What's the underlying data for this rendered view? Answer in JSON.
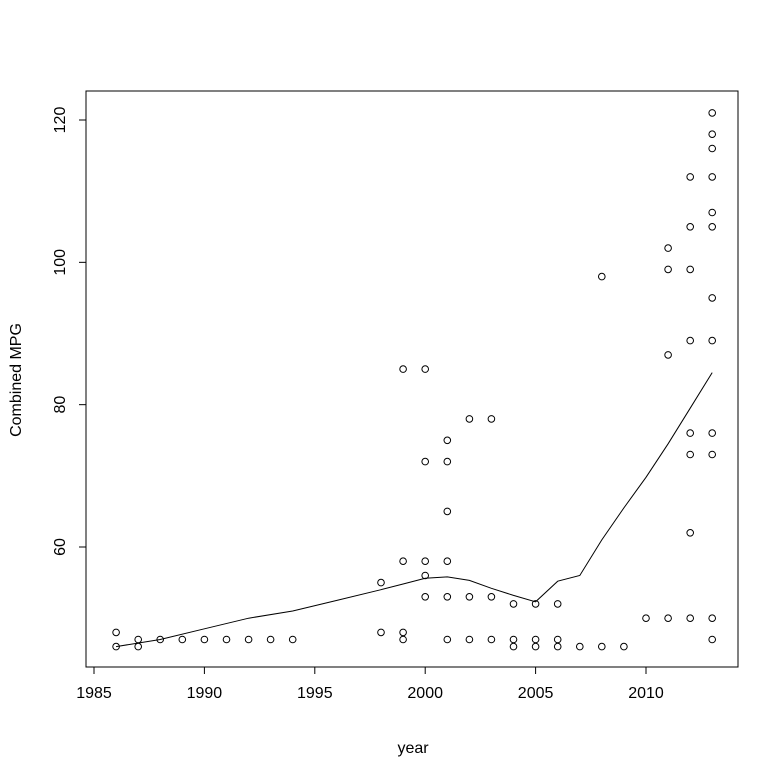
{
  "chart_data": {
    "type": "scatter",
    "title": "",
    "xlabel": "year",
    "ylabel": "Combined MPG",
    "xlim": [
      1985,
      2014
    ],
    "ylim": [
      43,
      124
    ],
    "xticks": [
      1985,
      1990,
      1995,
      2000,
      2005,
      2010
    ],
    "yticks": [
      60,
      80,
      100,
      120
    ],
    "grid": false,
    "legend": "none",
    "marker": "open-circle",
    "colors": {
      "points": "#000000",
      "line": "#000000",
      "frame": "#000000"
    },
    "points": [
      [
        1986,
        48
      ],
      [
        1986,
        46
      ],
      [
        1987,
        47
      ],
      [
        1987,
        46
      ],
      [
        1988,
        47
      ],
      [
        1989,
        47
      ],
      [
        1990,
        47
      ],
      [
        1991,
        47
      ],
      [
        1992,
        47
      ],
      [
        1993,
        47
      ],
      [
        1994,
        47
      ],
      [
        1998,
        55
      ],
      [
        1998,
        48
      ],
      [
        1999,
        85
      ],
      [
        1999,
        58
      ],
      [
        1999,
        48
      ],
      [
        1999,
        47
      ],
      [
        2000,
        85
      ],
      [
        2000,
        72
      ],
      [
        2000,
        58
      ],
      [
        2000,
        56
      ],
      [
        2000,
        53
      ],
      [
        2001,
        75
      ],
      [
        2001,
        72
      ],
      [
        2001,
        65
      ],
      [
        2001,
        58
      ],
      [
        2001,
        53
      ],
      [
        2001,
        47
      ],
      [
        2002,
        78
      ],
      [
        2002,
        53
      ],
      [
        2002,
        47
      ],
      [
        2003,
        78
      ],
      [
        2003,
        53
      ],
      [
        2003,
        47
      ],
      [
        2004,
        52
      ],
      [
        2004,
        47
      ],
      [
        2004,
        46
      ],
      [
        2005,
        52
      ],
      [
        2005,
        47
      ],
      [
        2005,
        46
      ],
      [
        2006,
        52
      ],
      [
        2006,
        47
      ],
      [
        2006,
        46
      ],
      [
        2007,
        46
      ],
      [
        2008,
        98
      ],
      [
        2008,
        46
      ],
      [
        2009,
        46
      ],
      [
        2010,
        50
      ],
      [
        2011,
        102
      ],
      [
        2011,
        99
      ],
      [
        2011,
        87
      ],
      [
        2011,
        50
      ],
      [
        2012,
        112
      ],
      [
        2012,
        105
      ],
      [
        2012,
        99
      ],
      [
        2012,
        89
      ],
      [
        2012,
        76
      ],
      [
        2012,
        73
      ],
      [
        2012,
        62
      ],
      [
        2012,
        50
      ],
      [
        2013,
        121
      ],
      [
        2013,
        118
      ],
      [
        2013,
        116
      ],
      [
        2013,
        112
      ],
      [
        2013,
        107
      ],
      [
        2013,
        105
      ],
      [
        2013,
        95
      ],
      [
        2013,
        89
      ],
      [
        2013,
        76
      ],
      [
        2013,
        73
      ],
      [
        2013,
        50
      ],
      [
        2013,
        47
      ]
    ],
    "trend_line": {
      "x": [
        1986,
        1988,
        1990,
        1992,
        1994,
        1996,
        1998,
        1999,
        2000,
        2001,
        2002,
        2003,
        2004,
        2005,
        2006,
        2007,
        2008,
        2009,
        2010,
        2011,
        2012,
        2013
      ],
      "y": [
        46,
        47,
        48.5,
        50,
        51,
        52.5,
        54,
        54.8,
        55.6,
        55.8,
        55.3,
        54.2,
        53.2,
        52.3,
        55.2,
        56.0,
        61.0,
        65.5,
        69.8,
        74.5,
        79.5,
        84.5
      ]
    }
  }
}
